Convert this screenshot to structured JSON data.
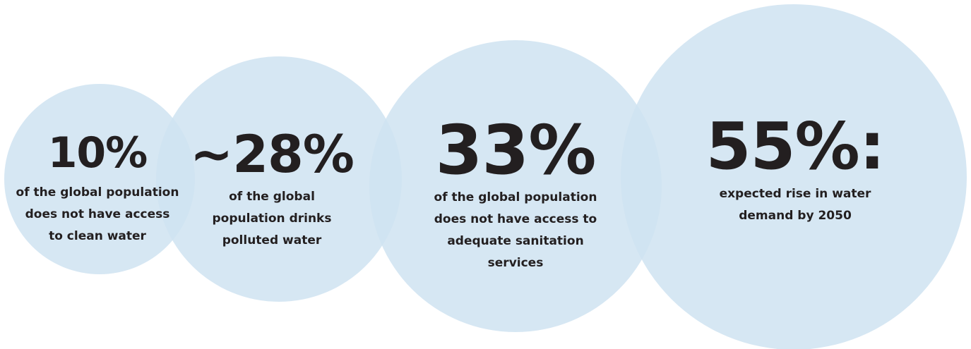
{
  "colors": {
    "bubble": "#cfe3f1",
    "text": "#231f20"
  },
  "stats": [
    {
      "value": "10%",
      "description": "of the global population\ndoes not have access\nto clean water"
    },
    {
      "value": "~28%",
      "description": "of the global\npopulation drinks\npolluted water"
    },
    {
      "value": "33%",
      "description": "of the global population\ndoes not have access to\nadequate sanitation\nservices"
    },
    {
      "value": "55%:",
      "description": "expected rise in water\ndemand by 2050"
    }
  ]
}
